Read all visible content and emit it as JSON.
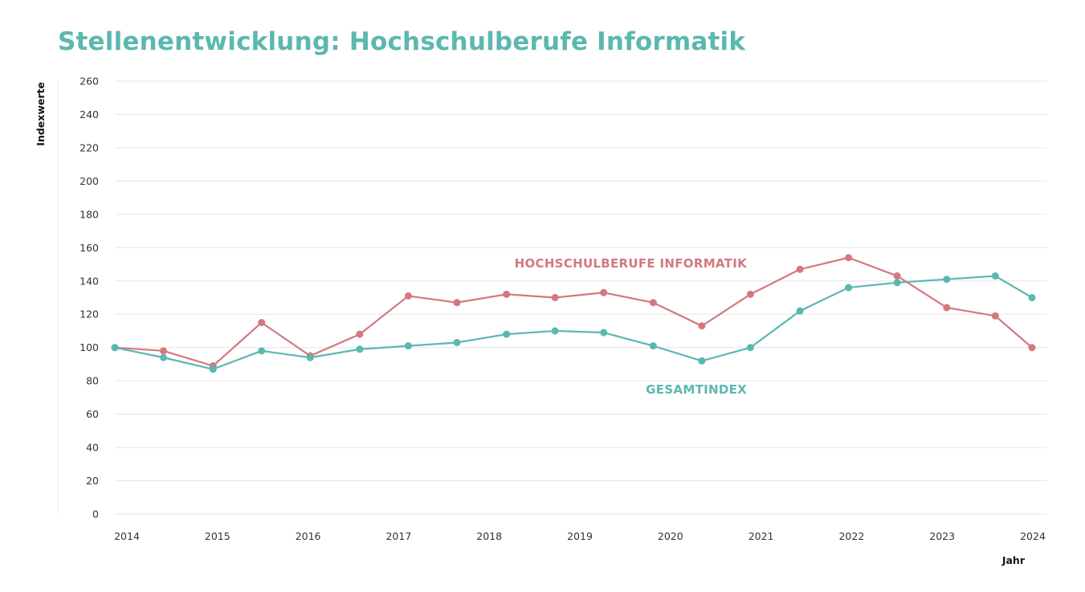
{
  "chart_data": {
    "type": "line",
    "title": "Stellenentwicklung: Hochschulberufe Informatik",
    "xlabel": "Jahr",
    "ylabel": "Indexwerte",
    "ylim": [
      0,
      260
    ],
    "yticks": [
      0,
      20,
      40,
      60,
      80,
      100,
      120,
      140,
      160,
      180,
      200,
      220,
      240,
      260
    ],
    "xlim": [
      2014,
      2024
    ],
    "xticks": [
      "2014",
      "2015",
      "2016",
      "2017",
      "2018",
      "2019",
      "2020",
      "2021",
      "2022",
      "2023",
      "2024"
    ],
    "grid": true,
    "legend": "inline labels",
    "series": [
      {
        "name": "HOCHSCHULBERUFE INFORMATIK",
        "color": "#d4787f",
        "x": [
          2014.0,
          2014.53,
          2015.07,
          2015.6,
          2016.13,
          2016.67,
          2017.2,
          2017.73,
          2018.27,
          2018.8,
          2019.33,
          2019.87,
          2020.4,
          2020.93,
          2021.47,
          2022.0,
          2022.53,
          2023.07,
          2023.6,
          2024.0
        ],
        "values": [
          100,
          98,
          89,
          115,
          95,
          108,
          131,
          127,
          132,
          130,
          133,
          127,
          113,
          132,
          147,
          154,
          143,
          124,
          119,
          100
        ]
      },
      {
        "name": "GESAMTINDEX",
        "color": "#5bb8b0",
        "x": [
          2014.0,
          2014.53,
          2015.07,
          2015.6,
          2016.13,
          2016.67,
          2017.2,
          2017.73,
          2018.27,
          2018.8,
          2019.33,
          2019.87,
          2020.4,
          2020.93,
          2021.47,
          2022.0,
          2022.53,
          2023.07,
          2023.6,
          2024.0
        ],
        "values": [
          100,
          94,
          87,
          98,
          94,
          99,
          101,
          103,
          108,
          110,
          109,
          101,
          92,
          100,
          122,
          136,
          139,
          141,
          143,
          130
        ]
      }
    ]
  }
}
